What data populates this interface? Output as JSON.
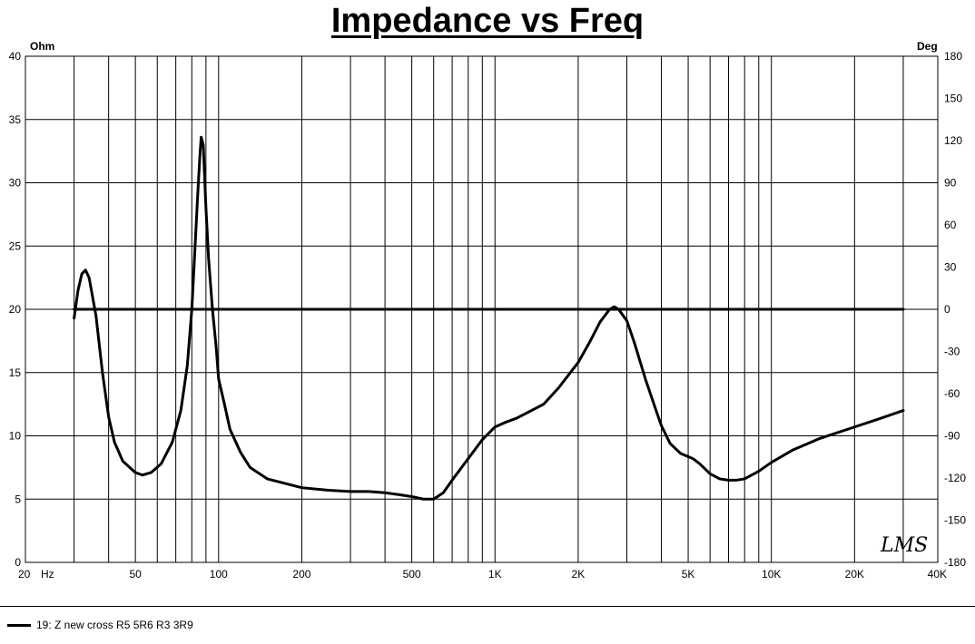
{
  "chart_data": {
    "type": "line",
    "title": "Impedance vs Freq",
    "y_left_unit": "Ohm",
    "y_right_unit": "Deg",
    "x_scale": "log",
    "xlim": [
      20,
      40000
    ],
    "ylim": [
      0,
      40
    ],
    "y2lim": [
      -180,
      180
    ],
    "grid": true,
    "x_ticks": [
      {
        "value": 20,
        "label": "20"
      },
      {
        "value": 50,
        "label": "50"
      },
      {
        "value": 100,
        "label": "100"
      },
      {
        "value": 200,
        "label": "200"
      },
      {
        "value": 500,
        "label": "500"
      },
      {
        "value": 1000,
        "label": "1K"
      },
      {
        "value": 2000,
        "label": "2K"
      },
      {
        "value": 5000,
        "label": "5K"
      },
      {
        "value": 10000,
        "label": "10K"
      },
      {
        "value": 20000,
        "label": "20K"
      },
      {
        "value": 40000,
        "label": "40K"
      }
    ],
    "x_unit_label": "Hz",
    "y_ticks": [
      0,
      5,
      10,
      15,
      20,
      25,
      30,
      35,
      40
    ],
    "y2_ticks": [
      -180,
      -150,
      -120,
      -90,
      -60,
      -30,
      0,
      30,
      60,
      90,
      120,
      150,
      180
    ],
    "series": [
      {
        "name": "19: Z new cross R5 5R6  R3 3R9",
        "axis": "left",
        "points": [
          [
            30,
            19.3
          ],
          [
            31,
            21.5
          ],
          [
            32,
            22.8
          ],
          [
            33,
            23.1
          ],
          [
            34,
            22.5
          ],
          [
            36,
            19.5
          ],
          [
            38,
            15.0
          ],
          [
            40,
            11.5
          ],
          [
            42,
            9.5
          ],
          [
            45,
            8.0
          ],
          [
            50,
            7.1
          ],
          [
            53,
            6.9
          ],
          [
            57,
            7.1
          ],
          [
            62,
            7.8
          ],
          [
            68,
            9.5
          ],
          [
            73,
            12.0
          ],
          [
            77,
            15.5
          ],
          [
            80,
            20.0
          ],
          [
            82,
            24.5
          ],
          [
            84,
            29.0
          ],
          [
            85.5,
            32.0
          ],
          [
            86.5,
            33.6
          ],
          [
            88,
            33.0
          ],
          [
            90,
            28.0
          ],
          [
            92,
            24.0
          ],
          [
            95,
            20.0
          ],
          [
            98,
            17.0
          ],
          [
            100,
            14.5
          ],
          [
            105,
            12.5
          ],
          [
            110,
            10.5
          ],
          [
            120,
            8.7
          ],
          [
            130,
            7.5
          ],
          [
            150,
            6.6
          ],
          [
            200,
            5.9
          ],
          [
            250,
            5.7
          ],
          [
            300,
            5.6
          ],
          [
            350,
            5.6
          ],
          [
            400,
            5.5
          ],
          [
            450,
            5.35
          ],
          [
            500,
            5.2
          ],
          [
            550,
            5.0
          ],
          [
            600,
            5.0
          ],
          [
            650,
            5.5
          ],
          [
            700,
            6.5
          ],
          [
            800,
            8.2
          ],
          [
            900,
            9.7
          ],
          [
            1000,
            10.7
          ],
          [
            1100,
            11.1
          ],
          [
            1200,
            11.4
          ],
          [
            1300,
            11.8
          ],
          [
            1500,
            12.5
          ],
          [
            1700,
            13.8
          ],
          [
            2000,
            15.8
          ],
          [
            2200,
            17.4
          ],
          [
            2400,
            19.0
          ],
          [
            2600,
            20.0
          ],
          [
            2700,
            20.2
          ],
          [
            2800,
            20.0
          ],
          [
            3000,
            19.1
          ],
          [
            3200,
            17.3
          ],
          [
            3500,
            14.5
          ],
          [
            3800,
            12.2
          ],
          [
            4000,
            10.8
          ],
          [
            4300,
            9.4
          ],
          [
            4700,
            8.6
          ],
          [
            5200,
            8.2
          ],
          [
            5500,
            7.8
          ],
          [
            6000,
            7.0
          ],
          [
            6500,
            6.6
          ],
          [
            7000,
            6.5
          ],
          [
            7500,
            6.5
          ],
          [
            8000,
            6.6
          ],
          [
            9000,
            7.2
          ],
          [
            10000,
            7.9
          ],
          [
            12000,
            8.9
          ],
          [
            15000,
            9.8
          ],
          [
            20000,
            10.7
          ],
          [
            25000,
            11.4
          ],
          [
            30000,
            12.0
          ]
        ]
      },
      {
        "name": "",
        "axis": "right",
        "points": [
          [
            30,
            0
          ],
          [
            30000,
            0
          ]
        ]
      }
    ],
    "annotations": [
      "LMS"
    ]
  },
  "legend": {
    "label": "19: Z new cross R5 5R6  R3 3R9"
  }
}
